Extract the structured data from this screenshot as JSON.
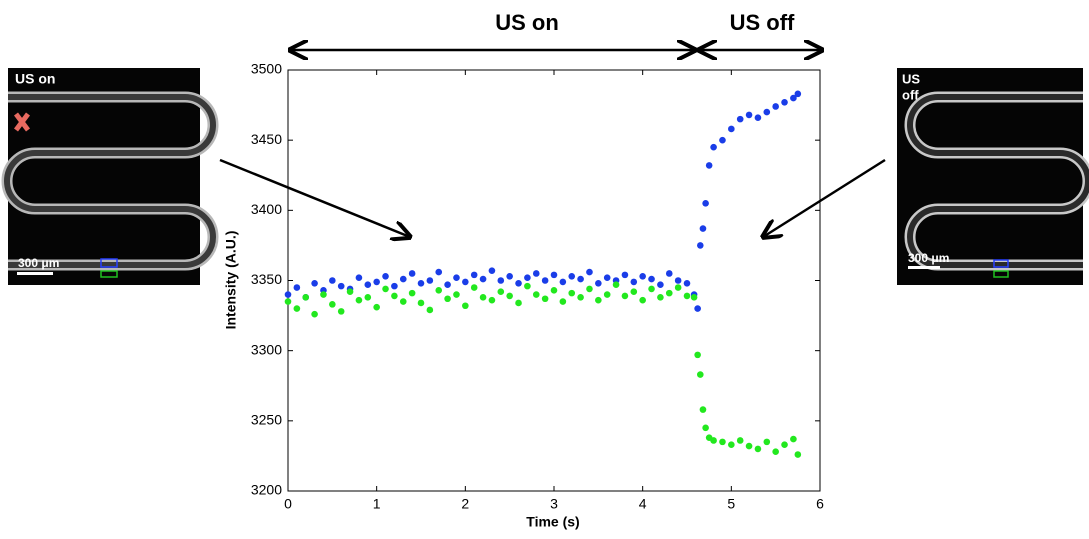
{
  "chart_data": {
    "type": "scatter",
    "x_label": "Time (s)",
    "y_label": "Intensity (A.U.)",
    "annotations": [
      "US on",
      "US off"
    ],
    "insets": [
      {
        "label_lines": [
          "US on"
        ],
        "scale_bar": "300 μm"
      },
      {
        "label_lines": [
          "US",
          "off"
        ],
        "scale_bar": "300 μm"
      }
    ],
    "x": [
      0.0,
      0.1,
      0.2,
      0.3,
      0.4,
      0.5,
      0.6,
      0.7,
      0.8,
      0.9,
      1.0,
      1.1,
      1.2,
      1.3,
      1.4,
      1.5,
      1.6,
      1.7,
      1.8,
      1.9,
      2.0,
      2.1,
      2.2,
      2.3,
      2.4,
      2.5,
      2.6,
      2.7,
      2.8,
      2.9,
      3.0,
      3.1,
      3.2,
      3.3,
      3.4,
      3.5,
      3.6,
      3.7,
      3.8,
      3.9,
      4.0,
      4.1,
      4.2,
      4.3,
      4.4,
      4.5,
      4.58,
      4.62,
      4.65,
      4.68,
      4.71,
      4.75,
      4.8,
      4.9,
      5.0,
      5.1,
      5.2,
      5.3,
      5.4,
      5.5,
      5.6,
      5.7,
      5.75
    ],
    "series": [
      {
        "color": "#1a3de8",
        "values": [
          3340,
          3345,
          3338,
          3348,
          3343,
          3350,
          3346,
          3344,
          3352,
          3347,
          3349,
          3353,
          3346,
          3351,
          3355,
          3348,
          3350,
          3356,
          3347,
          3352,
          3349,
          3354,
          3351,
          3357,
          3350,
          3353,
          3348,
          3352,
          3355,
          3350,
          3354,
          3349,
          3353,
          3351,
          3356,
          3348,
          3352,
          3350,
          3354,
          3349,
          3353,
          3351,
          3347,
          3355,
          3350,
          3348,
          3340,
          3330,
          3375,
          3387,
          3405,
          3432,
          3445,
          3450,
          3458,
          3465,
          3468,
          3466,
          3470,
          3474,
          3477,
          3480,
          3483
        ]
      },
      {
        "color": "#22e81e",
        "values": [
          3335,
          3330,
          3338,
          3326,
          3340,
          3333,
          3328,
          3342,
          3336,
          3338,
          3331,
          3344,
          3339,
          3335,
          3341,
          3334,
          3329,
          3343,
          3337,
          3340,
          3332,
          3345,
          3338,
          3336,
          3342,
          3339,
          3334,
          3346,
          3340,
          3337,
          3343,
          3335,
          3341,
          3338,
          3344,
          3336,
          3340,
          3347,
          3339,
          3342,
          3336,
          3344,
          3338,
          3341,
          3345,
          3339,
          3338,
          3297,
          3283,
          3258,
          3245,
          3238,
          3236,
          3235,
          3233,
          3236,
          3232,
          3230,
          3235,
          3228,
          3233,
          3237,
          3226
        ]
      }
    ],
    "xlim": [
      0,
      6
    ],
    "xticks": [
      0,
      1,
      2,
      3,
      4,
      5,
      6
    ],
    "ylim": [
      3200,
      3500
    ],
    "yticks": [
      3200,
      3250,
      3300,
      3350,
      3400,
      3450,
      3500
    ],
    "grid": false
  }
}
